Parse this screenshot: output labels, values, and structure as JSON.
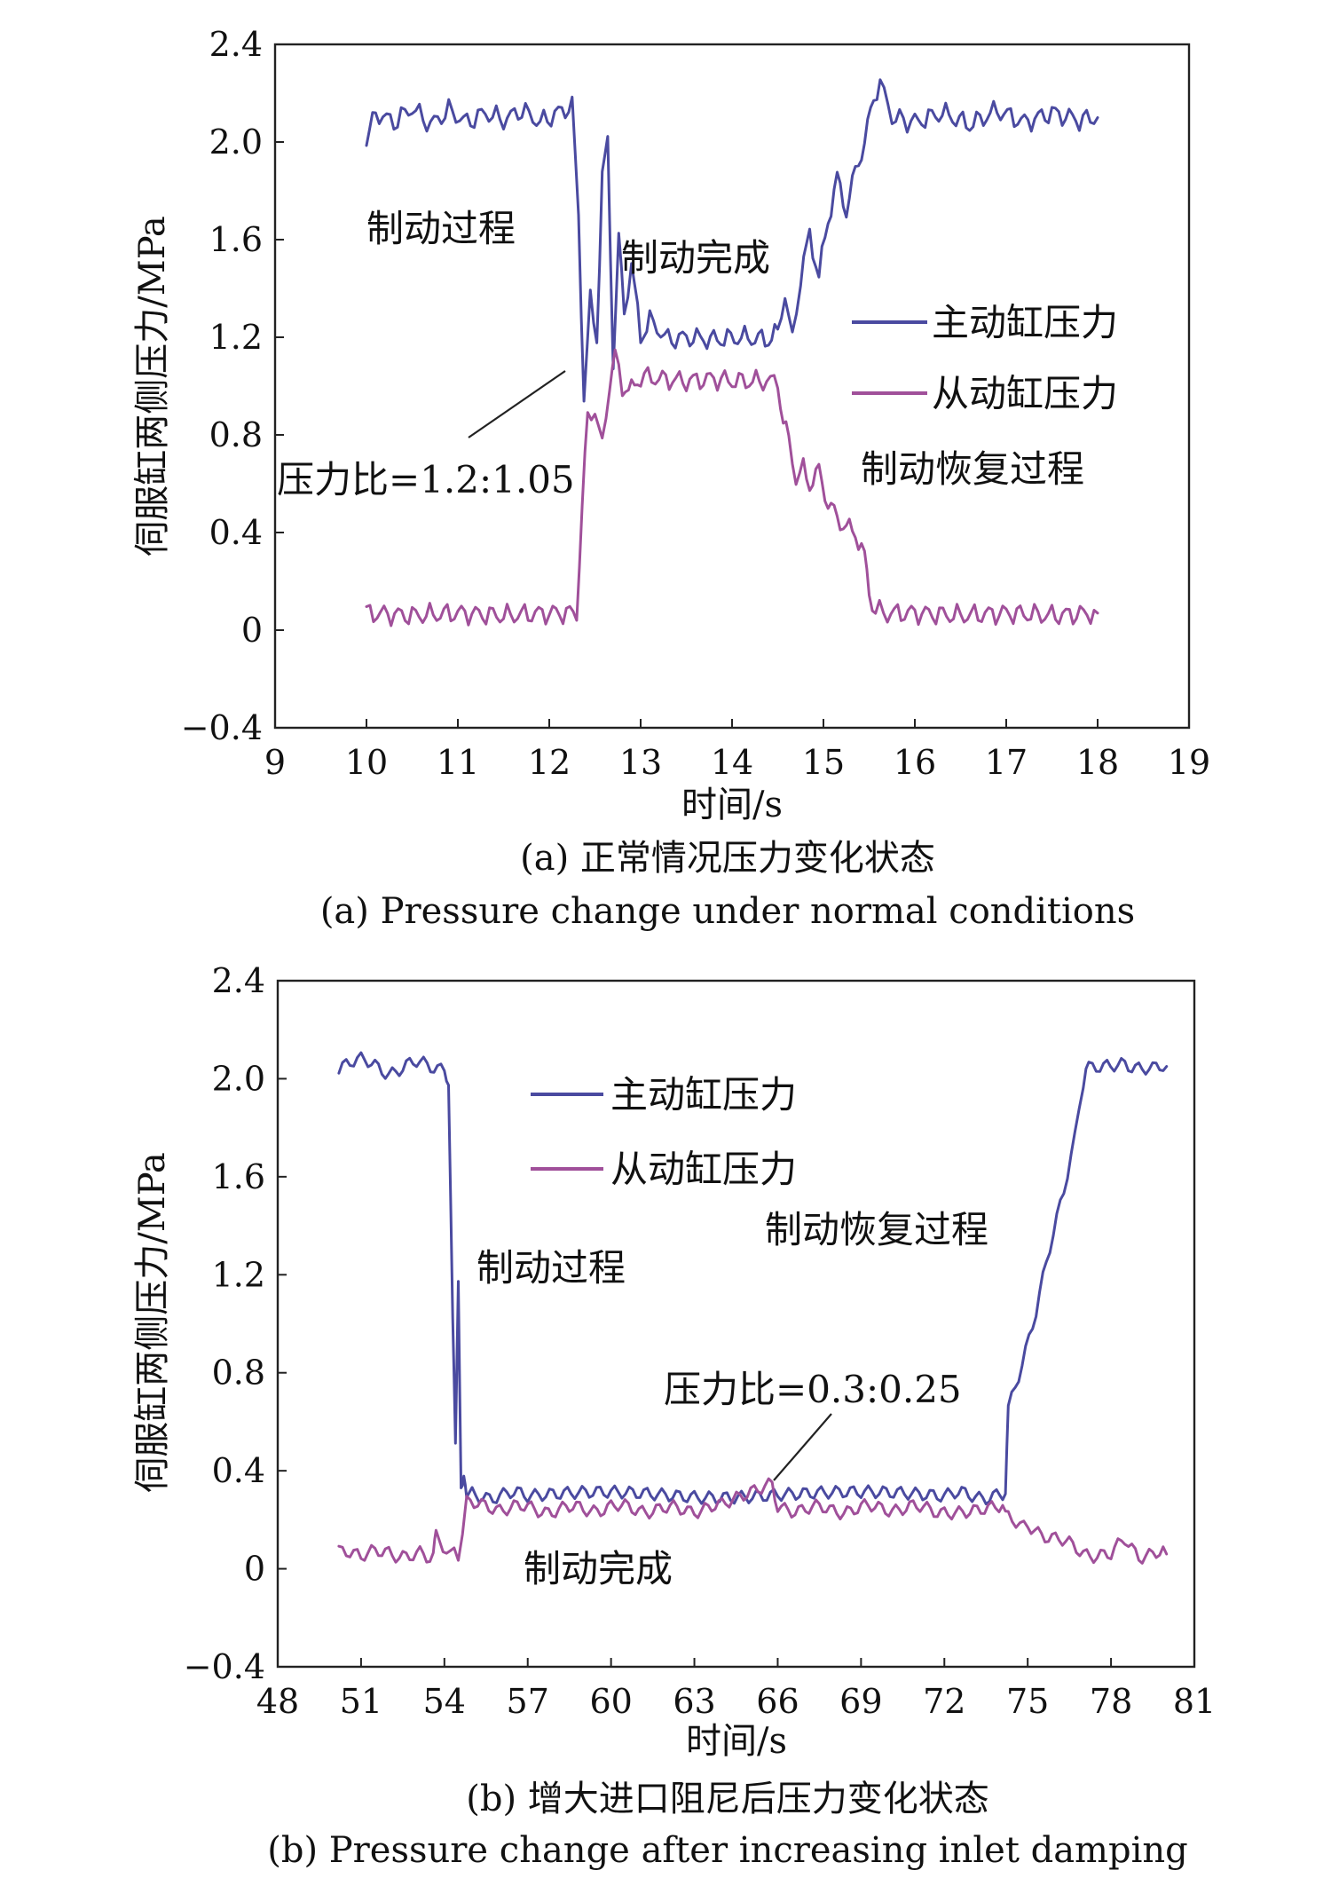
{
  "chart_data": [
    {
      "type": "line",
      "id": "a",
      "xlabel": "时间/s",
      "ylabel": "伺服缸两侧压力/MPa",
      "xlim": [
        9,
        19
      ],
      "ylim": [
        -0.4,
        2.4
      ],
      "xticks": [
        "9",
        "10",
        "11",
        "12",
        "13",
        "14",
        "15",
        "16",
        "17",
        "18",
        "19"
      ],
      "yticks": [
        "2.4",
        "2.0",
        "1.6",
        "1.2",
        "0.8",
        "0.4",
        "0",
        "−0.4"
      ],
      "legend": [
        "主动缸压力",
        "从动缸压力"
      ],
      "legend_position": "right",
      "grid": false,
      "captions": [
        "(a) 正常情况压力变化状态",
        "(a) Pressure change under normal conditions"
      ],
      "annotations": [
        "制动过程",
        "制动完成",
        "压力比=1.2:1.05",
        "制动恢复过程"
      ],
      "series": [
        {
          "name": "主动缸压力",
          "color": "#4a4aa0",
          "x": [
            10.0,
            10.1,
            10.3,
            10.5,
            10.7,
            10.9,
            11.1,
            11.3,
            11.5,
            11.7,
            11.9,
            12.1,
            12.25,
            12.32,
            12.38,
            12.45,
            12.52,
            12.58,
            12.64,
            12.7,
            12.76,
            12.82,
            12.9,
            13.0,
            13.1,
            13.3,
            13.5,
            13.8,
            14.1,
            14.4,
            14.5,
            14.58,
            14.66,
            14.75,
            14.85,
            14.95,
            15.05,
            15.15,
            15.25,
            15.35,
            15.45,
            15.55,
            15.62,
            15.75,
            16.0,
            16.3,
            16.6,
            16.9,
            17.2,
            17.5,
            17.8,
            18.0
          ],
          "y": [
            2.0,
            2.12,
            2.08,
            2.14,
            2.07,
            2.13,
            2.08,
            2.12,
            2.09,
            2.13,
            2.08,
            2.12,
            2.15,
            1.7,
            0.95,
            1.35,
            1.2,
            1.85,
            2.0,
            1.1,
            1.6,
            1.3,
            1.5,
            1.2,
            1.27,
            1.19,
            1.2,
            1.19,
            1.2,
            1.19,
            1.22,
            1.38,
            1.18,
            1.45,
            1.62,
            1.45,
            1.68,
            1.85,
            1.72,
            1.88,
            2.0,
            2.18,
            2.25,
            2.1,
            2.08,
            2.12,
            2.07,
            2.13,
            2.08,
            2.12,
            2.09,
            2.1
          ]
        },
        {
          "name": "从动缸压力",
          "color": "#a0509a",
          "x": [
            10.0,
            10.5,
            11.0,
            11.5,
            12.0,
            12.3,
            12.36,
            12.42,
            12.5,
            12.58,
            12.66,
            12.72,
            12.8,
            12.9,
            13.0,
            13.2,
            13.5,
            13.8,
            14.0,
            14.3,
            14.5,
            14.56,
            14.62,
            14.7,
            14.78,
            14.85,
            14.95,
            15.05,
            15.15,
            15.25,
            15.35,
            15.45,
            15.5,
            15.57,
            15.7,
            16.0,
            16.5,
            17.0,
            17.5,
            18.0
          ],
          "y": [
            0.07,
            0.06,
            0.07,
            0.06,
            0.07,
            0.07,
            0.5,
            0.88,
            0.9,
            0.75,
            1.02,
            1.12,
            1.0,
            0.98,
            1.04,
            1.03,
            1.02,
            1.03,
            1.02,
            1.02,
            1.02,
            0.85,
            0.78,
            0.62,
            0.66,
            0.6,
            0.65,
            0.52,
            0.46,
            0.42,
            0.4,
            0.3,
            0.15,
            0.08,
            0.07,
            0.07,
            0.06,
            0.07,
            0.06,
            0.07
          ]
        }
      ]
    },
    {
      "type": "line",
      "id": "b",
      "xlabel": "时间/s",
      "ylabel": "伺服缸两侧压力/MPa",
      "xlim": [
        48,
        81
      ],
      "ylim": [
        -0.4,
        2.4
      ],
      "xticks": [
        "48",
        "51",
        "54",
        "57",
        "60",
        "63",
        "66",
        "69",
        "72",
        "75",
        "78",
        "81"
      ],
      "yticks": [
        "2.4",
        "2.0",
        "1.6",
        "1.2",
        "0.8",
        "0.4",
        "0",
        "−0.4"
      ],
      "legend": [
        "主动缸压力",
        "从动缸压力"
      ],
      "legend_position": "top-center",
      "grid": false,
      "captions": [
        "(b) 增大进口阻尼后压力变化状态",
        "(b) Pressure change after increasing inlet damping"
      ],
      "annotations": [
        "制动过程",
        "压力比=0.3:0.25",
        "制动恢复过程",
        "制动完成"
      ],
      "series": [
        {
          "name": "主动缸压力",
          "color": "#4a4aa0",
          "x": [
            50.2,
            51.0,
            52.0,
            53.0,
            54.0,
            54.15,
            54.3,
            54.4,
            54.5,
            54.6,
            54.7,
            54.8,
            55.0,
            57.0,
            60.0,
            63.0,
            66.0,
            69.0,
            72.0,
            74.0,
            74.2,
            74.3,
            74.8,
            75.3,
            75.8,
            76.3,
            76.7,
            77.0,
            77.2,
            77.6,
            78.5,
            79.5,
            80.0
          ],
          "y": [
            2.04,
            2.07,
            2.03,
            2.06,
            2.05,
            2.0,
            1.0,
            0.5,
            1.15,
            0.35,
            0.4,
            0.3,
            0.3,
            0.3,
            0.3,
            0.3,
            0.31,
            0.3,
            0.3,
            0.3,
            0.32,
            0.65,
            0.85,
            1.05,
            1.3,
            1.55,
            1.75,
            2.0,
            2.06,
            2.05,
            2.07,
            2.03,
            2.05
          ]
        },
        {
          "name": "从动缸压力",
          "color": "#a0509a",
          "x": [
            50.2,
            51.0,
            52.0,
            53.0,
            53.6,
            53.7,
            54.2,
            54.5,
            54.8,
            56.0,
            58.0,
            60.0,
            62.0,
            64.0,
            65.8,
            66.0,
            68.0,
            70.0,
            72.0,
            74.1,
            74.3,
            75.0,
            76.0,
            77.0,
            77.5,
            78.0,
            78.5,
            79.0,
            80.0
          ],
          "y": [
            0.06,
            0.05,
            0.07,
            0.05,
            0.06,
            0.12,
            0.06,
            0.06,
            0.26,
            0.25,
            0.24,
            0.25,
            0.24,
            0.25,
            0.35,
            0.25,
            0.24,
            0.25,
            0.24,
            0.25,
            0.2,
            0.18,
            0.12,
            0.07,
            0.06,
            0.05,
            0.12,
            0.06,
            0.06
          ]
        }
      ]
    }
  ]
}
